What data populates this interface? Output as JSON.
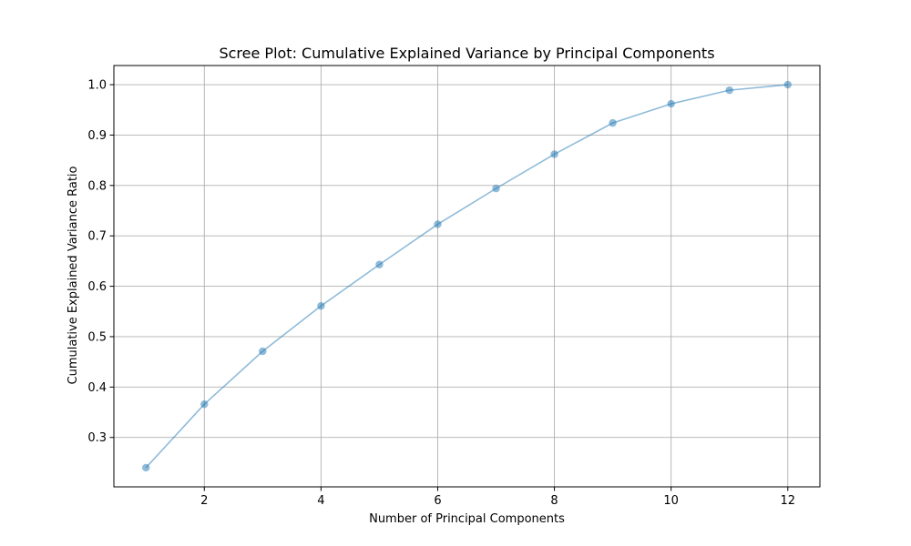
{
  "chart_data": {
    "type": "line",
    "title": "Scree Plot: Cumulative Explained Variance by Principal Components",
    "xlabel": "Number of Principal Components",
    "ylabel": "Cumulative Explained Variance Ratio",
    "x": [
      1,
      2,
      3,
      4,
      5,
      6,
      7,
      8,
      9,
      10,
      11,
      12
    ],
    "series": [
      {
        "values": [
          0.24,
          0.366,
          0.471,
          0.561,
          0.643,
          0.723,
          0.794,
          0.862,
          0.924,
          0.962,
          0.989,
          1.0
        ],
        "color": "#1f77b4",
        "opacity": 0.5,
        "marker": "circle"
      }
    ],
    "xlim": [
      0.45,
      12.55
    ],
    "ylim": [
      0.202,
      1.038
    ],
    "xticks": [
      2,
      4,
      6,
      8,
      10,
      12
    ],
    "xtick_labels": [
      "2",
      "4",
      "6",
      "8",
      "10",
      "12"
    ],
    "yticks": [
      0.3,
      0.4,
      0.5,
      0.6,
      0.7,
      0.8,
      0.9,
      1.0
    ],
    "ytick_labels": [
      "0.3",
      "0.4",
      "0.5",
      "0.6",
      "0.7",
      "0.8",
      "0.9",
      "1.0"
    ],
    "grid": true,
    "grid_color": "#b0b0b0"
  }
}
